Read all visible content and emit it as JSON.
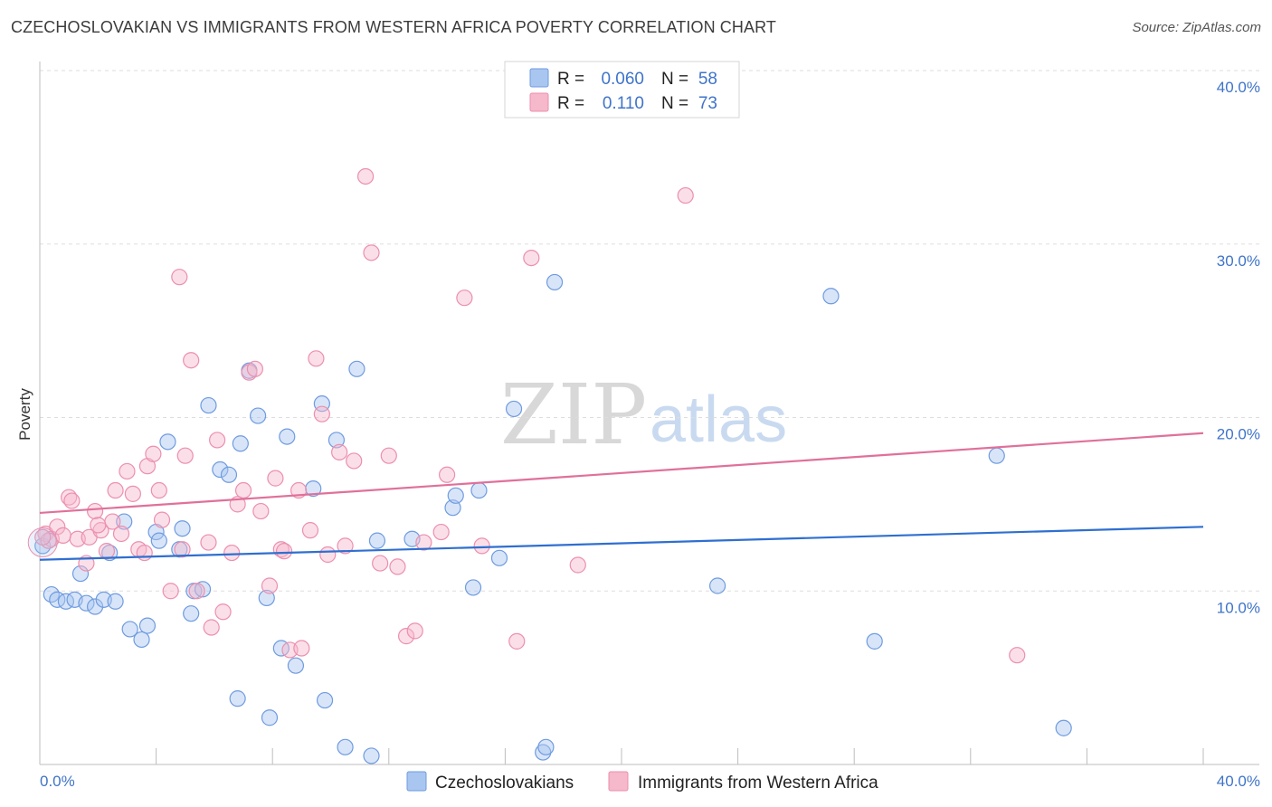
{
  "header": {
    "title": "CZECHOSLOVAKIAN VS IMMIGRANTS FROM WESTERN AFRICA POVERTY CORRELATION CHART",
    "source": "Source: ZipAtlas.com"
  },
  "watermark": {
    "zip": "ZIP",
    "atlas": "atlas"
  },
  "legend_top": [
    {
      "r_label": "R =",
      "r_value": "0.060",
      "n_label": "N =",
      "n_value": "58"
    },
    {
      "r_label": "R =",
      "r_value": "0.110",
      "n_label": "N =",
      "n_value": "73"
    }
  ],
  "legend_bottom": [
    "Czechoslovakians",
    "Immigrants from Western Africa"
  ],
  "colors": {
    "blue_fill": "#a9c6f0",
    "blue_stroke": "#6f9be0",
    "blue_line": "#2f6fd0",
    "pink_fill": "#f6b8cb",
    "pink_stroke": "#ec8fae",
    "pink_line": "#e0709a",
    "grid": "#dddddd",
    "tick_text": "#3f74c9"
  },
  "chart_data": {
    "type": "scatter",
    "title": "CZECHOSLOVAKIAN VS IMMIGRANTS FROM WESTERN AFRICA POVERTY CORRELATION CHART",
    "xlabel": "",
    "ylabel": "Poverty",
    "xlim": [
      0,
      40
    ],
    "ylim": [
      0,
      40
    ],
    "x_tick_labels": [
      "0.0%",
      "40.0%"
    ],
    "y_tick_values": [
      10,
      20,
      30,
      40
    ],
    "y_tick_labels": [
      "10.0%",
      "20.0%",
      "30.0%",
      "40.0%"
    ],
    "series": [
      {
        "name": "Czechoslovakians",
        "r": 0.06,
        "n": 58,
        "trend": {
          "x": [
            0,
            40
          ],
          "y": [
            11.8,
            13.7
          ]
        },
        "points": [
          [
            0.1,
            12.6
          ],
          [
            0.4,
            9.8
          ],
          [
            0.6,
            9.5
          ],
          [
            0.9,
            9.4
          ],
          [
            1.2,
            9.5
          ],
          [
            1.4,
            11.0
          ],
          [
            1.6,
            9.3
          ],
          [
            1.9,
            9.1
          ],
          [
            2.2,
            9.5
          ],
          [
            2.4,
            12.2
          ],
          [
            2.6,
            9.4
          ],
          [
            2.9,
            14.0
          ],
          [
            3.1,
            7.8
          ],
          [
            3.5,
            7.2
          ],
          [
            3.7,
            8.0
          ],
          [
            4.0,
            13.4
          ],
          [
            4.1,
            12.9
          ],
          [
            4.4,
            18.6
          ],
          [
            4.8,
            12.4
          ],
          [
            4.9,
            13.6
          ],
          [
            5.2,
            8.7
          ],
          [
            5.3,
            10.0
          ],
          [
            5.6,
            10.1
          ],
          [
            5.8,
            20.7
          ],
          [
            6.2,
            17.0
          ],
          [
            6.5,
            16.7
          ],
          [
            6.8,
            3.8
          ],
          [
            6.9,
            18.5
          ],
          [
            7.2,
            22.7
          ],
          [
            7.5,
            20.1
          ],
          [
            7.8,
            9.6
          ],
          [
            7.9,
            2.7
          ],
          [
            8.3,
            6.7
          ],
          [
            8.5,
            18.9
          ],
          [
            8.8,
            5.7
          ],
          [
            9.4,
            15.9
          ],
          [
            9.7,
            20.8
          ],
          [
            9.8,
            3.7
          ],
          [
            10.2,
            18.7
          ],
          [
            10.5,
            1.0
          ],
          [
            10.9,
            22.8
          ],
          [
            11.4,
            0.5
          ],
          [
            11.6,
            12.9
          ],
          [
            12.8,
            13.0
          ],
          [
            14.2,
            14.8
          ],
          [
            14.3,
            15.5
          ],
          [
            14.9,
            10.2
          ],
          [
            15.1,
            15.8
          ],
          [
            15.8,
            11.9
          ],
          [
            16.3,
            20.5
          ],
          [
            17.3,
            0.7
          ],
          [
            17.4,
            1.0
          ],
          [
            17.7,
            27.8
          ],
          [
            23.3,
            10.3
          ],
          [
            27.2,
            27.0
          ],
          [
            28.7,
            7.1
          ],
          [
            32.9,
            17.8
          ],
          [
            35.2,
            2.1
          ]
        ]
      },
      {
        "name": "Immigrants from Western Africa",
        "r": 0.11,
        "n": 73,
        "trend": {
          "x": [
            0,
            40
          ],
          "y": [
            14.5,
            19.1
          ]
        },
        "points": [
          [
            0.2,
            13.3
          ],
          [
            0.4,
            13.0
          ],
          [
            0.6,
            13.7
          ],
          [
            0.8,
            13.2
          ],
          [
            1.0,
            15.4
          ],
          [
            1.1,
            15.2
          ],
          [
            1.3,
            13.0
          ],
          [
            1.6,
            11.6
          ],
          [
            1.7,
            13.1
          ],
          [
            1.9,
            14.6
          ],
          [
            2.1,
            13.5
          ],
          [
            2.3,
            12.3
          ],
          [
            2.5,
            14.0
          ],
          [
            2.6,
            15.8
          ],
          [
            2.8,
            13.3
          ],
          [
            3.0,
            16.9
          ],
          [
            3.2,
            15.6
          ],
          [
            3.4,
            12.4
          ],
          [
            3.6,
            12.2
          ],
          [
            3.7,
            17.2
          ],
          [
            3.9,
            17.9
          ],
          [
            4.1,
            15.8
          ],
          [
            4.2,
            14.1
          ],
          [
            4.5,
            10.0
          ],
          [
            4.8,
            28.1
          ],
          [
            4.9,
            12.4
          ],
          [
            5.0,
            17.8
          ],
          [
            5.2,
            23.3
          ],
          [
            5.4,
            10.0
          ],
          [
            5.8,
            12.8
          ],
          [
            5.9,
            7.9
          ],
          [
            6.1,
            18.7
          ],
          [
            6.3,
            8.8
          ],
          [
            6.6,
            12.2
          ],
          [
            6.8,
            15.0
          ],
          [
            7.0,
            15.8
          ],
          [
            7.2,
            22.6
          ],
          [
            7.4,
            22.8
          ],
          [
            7.6,
            14.6
          ],
          [
            7.9,
            10.3
          ],
          [
            8.1,
            16.5
          ],
          [
            8.3,
            12.4
          ],
          [
            8.4,
            12.3
          ],
          [
            8.6,
            6.6
          ],
          [
            8.9,
            15.8
          ],
          [
            9.0,
            6.7
          ],
          [
            9.3,
            13.5
          ],
          [
            9.5,
            23.4
          ],
          [
            9.7,
            20.2
          ],
          [
            9.9,
            12.1
          ],
          [
            10.3,
            18.0
          ],
          [
            10.5,
            12.6
          ],
          [
            10.8,
            17.5
          ],
          [
            11.2,
            33.9
          ],
          [
            11.4,
            29.5
          ],
          [
            11.7,
            11.6
          ],
          [
            12.0,
            17.8
          ],
          [
            12.3,
            11.4
          ],
          [
            12.6,
            7.4
          ],
          [
            12.9,
            7.7
          ],
          [
            13.2,
            12.8
          ],
          [
            13.8,
            13.4
          ],
          [
            14.0,
            16.7
          ],
          [
            14.6,
            26.9
          ],
          [
            15.2,
            12.6
          ],
          [
            16.4,
            7.1
          ],
          [
            16.9,
            29.2
          ],
          [
            18.5,
            11.5
          ],
          [
            22.2,
            32.8
          ],
          [
            33.6,
            6.3
          ],
          [
            0.3,
            12.9
          ],
          [
            0.1,
            13.1
          ],
          [
            2.0,
            13.8
          ]
        ]
      }
    ]
  }
}
